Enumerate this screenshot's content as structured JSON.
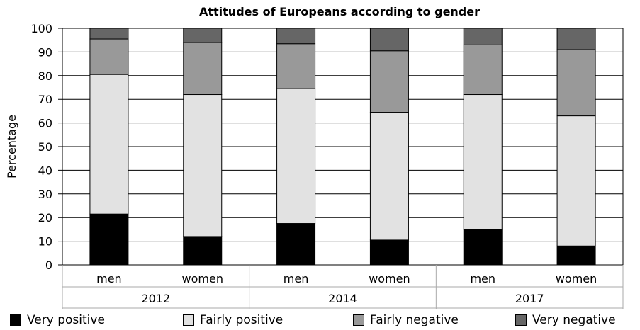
{
  "chart_data": {
    "type": "bar",
    "stacked": true,
    "title": "Attitudes of Europeans according to gender",
    "xlabel": "",
    "ylabel": "Percentage",
    "ylim": [
      0,
      100
    ],
    "yticks": [
      "0",
      "10",
      "20",
      "30",
      "40",
      "50",
      "60",
      "70",
      "80",
      "90",
      "100"
    ],
    "categories": [
      "men",
      "women",
      "men",
      "women",
      "men",
      "women"
    ],
    "groups": [
      {
        "label": "2012",
        "categories": [
          "men",
          "women"
        ]
      },
      {
        "label": "2014",
        "categories": [
          "men",
          "women"
        ]
      },
      {
        "label": "2017",
        "categories": [
          "men",
          "women"
        ]
      }
    ],
    "series": [
      {
        "name": "Very positive",
        "color": "#000000",
        "values": [
          21.5,
          12,
          17.5,
          10.5,
          15,
          8
        ]
      },
      {
        "name": "Fairly positive",
        "color": "#e2e2e2",
        "values": [
          59,
          60,
          57,
          54,
          57,
          55
        ]
      },
      {
        "name": "Fairly negative",
        "color": "#999999",
        "values": [
          15,
          22,
          19,
          26,
          21,
          28
        ]
      },
      {
        "name": "Very negative",
        "color": "#666666",
        "values": [
          4.5,
          6,
          6.5,
          9.5,
          7,
          9
        ]
      }
    ],
    "grid": true,
    "legend_position": "bottom"
  }
}
